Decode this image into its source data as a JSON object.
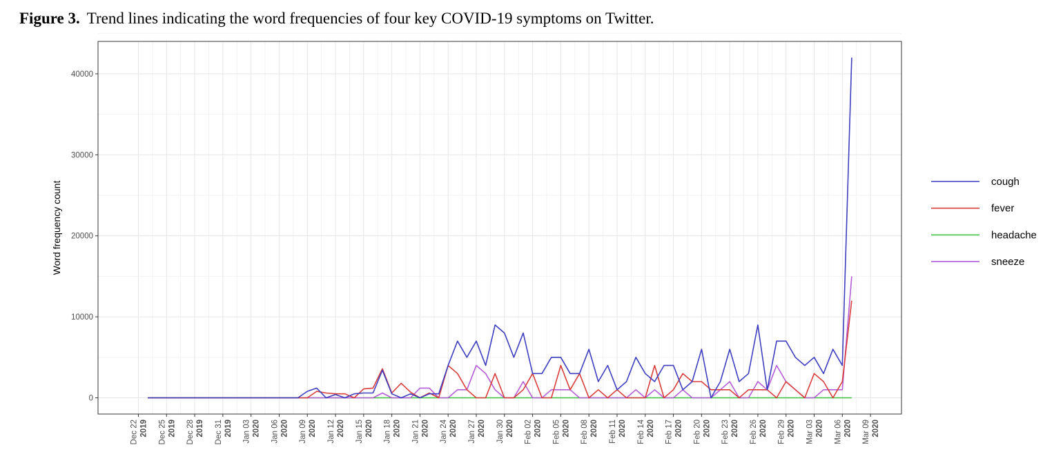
{
  "caption": {
    "label": "Figure 3.",
    "text": "Trend lines indicating the word frequencies of four key COVID-19 symptoms on Twitter."
  },
  "chart_data": {
    "type": "line",
    "title": "",
    "xlabel": "",
    "ylabel": "Word frequency count",
    "ylim": [
      -2000,
      44000
    ],
    "yticks": [
      0,
      10000,
      20000,
      30000,
      40000
    ],
    "ytick_labels": [
      "0",
      "10000",
      "20000",
      "30000",
      "40000"
    ],
    "xlim_day": [
      -4.3,
      81.3
    ],
    "xticks": [
      {
        "day": 0,
        "month": "Dec 22",
        "year": "2019"
      },
      {
        "day": 3,
        "month": "Dec 25",
        "year": "2019"
      },
      {
        "day": 6,
        "month": "Dec 28",
        "year": "2019"
      },
      {
        "day": 9,
        "month": "Dec 31",
        "year": "2019"
      },
      {
        "day": 12,
        "month": "Jan 03",
        "year": "2020"
      },
      {
        "day": 15,
        "month": "Jan 06",
        "year": "2020"
      },
      {
        "day": 18,
        "month": "Jan 09",
        "year": "2020"
      },
      {
        "day": 21,
        "month": "Jan 12",
        "year": "2020"
      },
      {
        "day": 24,
        "month": "Jan 15",
        "year": "2020"
      },
      {
        "day": 27,
        "month": "Jan 18",
        "year": "2020"
      },
      {
        "day": 30,
        "month": "Jan 21",
        "year": "2020"
      },
      {
        "day": 33,
        "month": "Jan 24",
        "year": "2020"
      },
      {
        "day": 36,
        "month": "Jan 27",
        "year": "2020"
      },
      {
        "day": 39,
        "month": "Jan 30",
        "year": "2020"
      },
      {
        "day": 42,
        "month": "Feb 02",
        "year": "2020"
      },
      {
        "day": 45,
        "month": "Feb 05",
        "year": "2020"
      },
      {
        "day": 48,
        "month": "Feb 08",
        "year": "2020"
      },
      {
        "day": 51,
        "month": "Feb 11",
        "year": "2020"
      },
      {
        "day": 54,
        "month": "Feb 14",
        "year": "2020"
      },
      {
        "day": 57,
        "month": "Feb 17",
        "year": "2020"
      },
      {
        "day": 60,
        "month": "Feb 20",
        "year": "2020"
      },
      {
        "day": 63,
        "month": "Feb 23",
        "year": "2020"
      },
      {
        "day": 66,
        "month": "Feb 26",
        "year": "2020"
      },
      {
        "day": 69,
        "month": "Feb 29",
        "year": "2020"
      },
      {
        "day": 72,
        "month": "Mar 03",
        "year": "2020"
      },
      {
        "day": 75,
        "month": "Mar 06",
        "year": "2020"
      },
      {
        "day": 78,
        "month": "Mar 09",
        "year": "2020"
      }
    ],
    "series": [
      {
        "name": "cough",
        "color": "#3d3dbf",
        "points": [
          [
            1,
            0
          ],
          [
            17,
            0
          ],
          [
            18,
            800
          ],
          [
            19,
            1200
          ],
          [
            20,
            0
          ],
          [
            21,
            400
          ],
          [
            22,
            0
          ],
          [
            23,
            500
          ],
          [
            24,
            600
          ],
          [
            25,
            600
          ],
          [
            26,
            3400
          ],
          [
            27,
            500
          ],
          [
            28,
            0
          ],
          [
            29,
            500
          ],
          [
            30,
            0
          ],
          [
            31,
            500
          ],
          [
            32,
            500
          ],
          [
            33,
            4000
          ],
          [
            34,
            7000
          ],
          [
            35,
            5000
          ],
          [
            36,
            7000
          ],
          [
            37,
            4000
          ],
          [
            38,
            9000
          ],
          [
            39,
            8000
          ],
          [
            40,
            5000
          ],
          [
            41,
            8000
          ],
          [
            42,
            3000
          ],
          [
            43,
            3000
          ],
          [
            44,
            5000
          ],
          [
            45,
            5000
          ],
          [
            46,
            3000
          ],
          [
            47,
            3000
          ],
          [
            48,
            6000
          ],
          [
            49,
            2000
          ],
          [
            50,
            4000
          ],
          [
            51,
            1000
          ],
          [
            52,
            2000
          ],
          [
            53,
            5000
          ],
          [
            54,
            3000
          ],
          [
            55,
            2000
          ],
          [
            56,
            4000
          ],
          [
            57,
            4000
          ],
          [
            58,
            1000
          ],
          [
            59,
            2000
          ],
          [
            60,
            6000
          ],
          [
            61,
            0
          ],
          [
            62,
            2000
          ],
          [
            63,
            6000
          ],
          [
            64,
            2000
          ],
          [
            65,
            3000
          ],
          [
            66,
            9000
          ],
          [
            67,
            1000
          ],
          [
            68,
            7000
          ],
          [
            69,
            7000
          ],
          [
            70,
            5000
          ],
          [
            71,
            4000
          ],
          [
            72,
            5000
          ],
          [
            73,
            3000
          ],
          [
            74,
            6000
          ],
          [
            75,
            4000
          ],
          [
            76,
            42000
          ]
        ]
      },
      {
        "name": "fever",
        "color": "#d93c3c",
        "points": [
          [
            1,
            0
          ],
          [
            18,
            0
          ],
          [
            19,
            800
          ],
          [
            20,
            600
          ],
          [
            21,
            500
          ],
          [
            22,
            500
          ],
          [
            23,
            0
          ],
          [
            24,
            1100
          ],
          [
            25,
            1200
          ],
          [
            26,
            3600
          ],
          [
            27,
            600
          ],
          [
            28,
            1800
          ],
          [
            29,
            700
          ],
          [
            30,
            0
          ],
          [
            31,
            600
          ],
          [
            32,
            0
          ],
          [
            33,
            4000
          ],
          [
            34,
            3000
          ],
          [
            35,
            1000
          ],
          [
            36,
            0
          ],
          [
            37,
            0
          ],
          [
            38,
            3000
          ],
          [
            39,
            0
          ],
          [
            40,
            0
          ],
          [
            41,
            1000
          ],
          [
            42,
            3000
          ],
          [
            43,
            0
          ],
          [
            44,
            0
          ],
          [
            45,
            4000
          ],
          [
            46,
            1000
          ],
          [
            47,
            3000
          ],
          [
            48,
            0
          ],
          [
            49,
            1000
          ],
          [
            50,
            0
          ],
          [
            51,
            1000
          ],
          [
            52,
            0
          ],
          [
            53,
            0
          ],
          [
            54,
            0
          ],
          [
            55,
            4000
          ],
          [
            56,
            0
          ],
          [
            57,
            1000
          ],
          [
            58,
            3000
          ],
          [
            59,
            2000
          ],
          [
            60,
            2000
          ],
          [
            61,
            1000
          ],
          [
            62,
            1000
          ],
          [
            63,
            1000
          ],
          [
            64,
            0
          ],
          [
            65,
            1000
          ],
          [
            66,
            1000
          ],
          [
            67,
            1000
          ],
          [
            68,
            0
          ],
          [
            69,
            2000
          ],
          [
            70,
            1000
          ],
          [
            71,
            0
          ],
          [
            72,
            3000
          ],
          [
            73,
            2000
          ],
          [
            74,
            0
          ],
          [
            75,
            2000
          ],
          [
            76,
            12000
          ]
        ]
      },
      {
        "name": "headache",
        "color": "#3fbf3f",
        "points": [
          [
            1,
            0
          ],
          [
            76,
            0
          ]
        ]
      },
      {
        "name": "sneeze",
        "color": "#b45cd6",
        "points": [
          [
            1,
            0
          ],
          [
            25,
            0
          ],
          [
            26,
            600
          ],
          [
            27,
            0
          ],
          [
            28,
            0
          ],
          [
            29,
            0
          ],
          [
            30,
            1200
          ],
          [
            31,
            1200
          ],
          [
            32,
            0
          ],
          [
            33,
            0
          ],
          [
            34,
            1000
          ],
          [
            35,
            1000
          ],
          [
            36,
            4000
          ],
          [
            37,
            3000
          ],
          [
            38,
            1000
          ],
          [
            39,
            0
          ],
          [
            40,
            0
          ],
          [
            41,
            2000
          ],
          [
            42,
            0
          ],
          [
            43,
            0
          ],
          [
            44,
            1000
          ],
          [
            45,
            1000
          ],
          [
            46,
            1000
          ],
          [
            47,
            0
          ],
          [
            48,
            0
          ],
          [
            49,
            0
          ],
          [
            50,
            0
          ],
          [
            51,
            0
          ],
          [
            52,
            0
          ],
          [
            53,
            1000
          ],
          [
            54,
            0
          ],
          [
            55,
            1000
          ],
          [
            56,
            0
          ],
          [
            57,
            0
          ],
          [
            58,
            1000
          ],
          [
            59,
            0
          ],
          [
            60,
            0
          ],
          [
            61,
            0
          ],
          [
            62,
            1000
          ],
          [
            63,
            2000
          ],
          [
            64,
            0
          ],
          [
            65,
            0
          ],
          [
            66,
            2000
          ],
          [
            67,
            1000
          ],
          [
            68,
            4000
          ],
          [
            69,
            2000
          ],
          [
            70,
            1000
          ],
          [
            71,
            0
          ],
          [
            72,
            0
          ],
          [
            73,
            1000
          ],
          [
            74,
            1000
          ],
          [
            75,
            1000
          ],
          [
            76,
            15000
          ]
        ]
      }
    ],
    "legend": {
      "position": "right",
      "entries": [
        "cough",
        "fever",
        "headache",
        "sneeze"
      ]
    },
    "grid": true
  }
}
